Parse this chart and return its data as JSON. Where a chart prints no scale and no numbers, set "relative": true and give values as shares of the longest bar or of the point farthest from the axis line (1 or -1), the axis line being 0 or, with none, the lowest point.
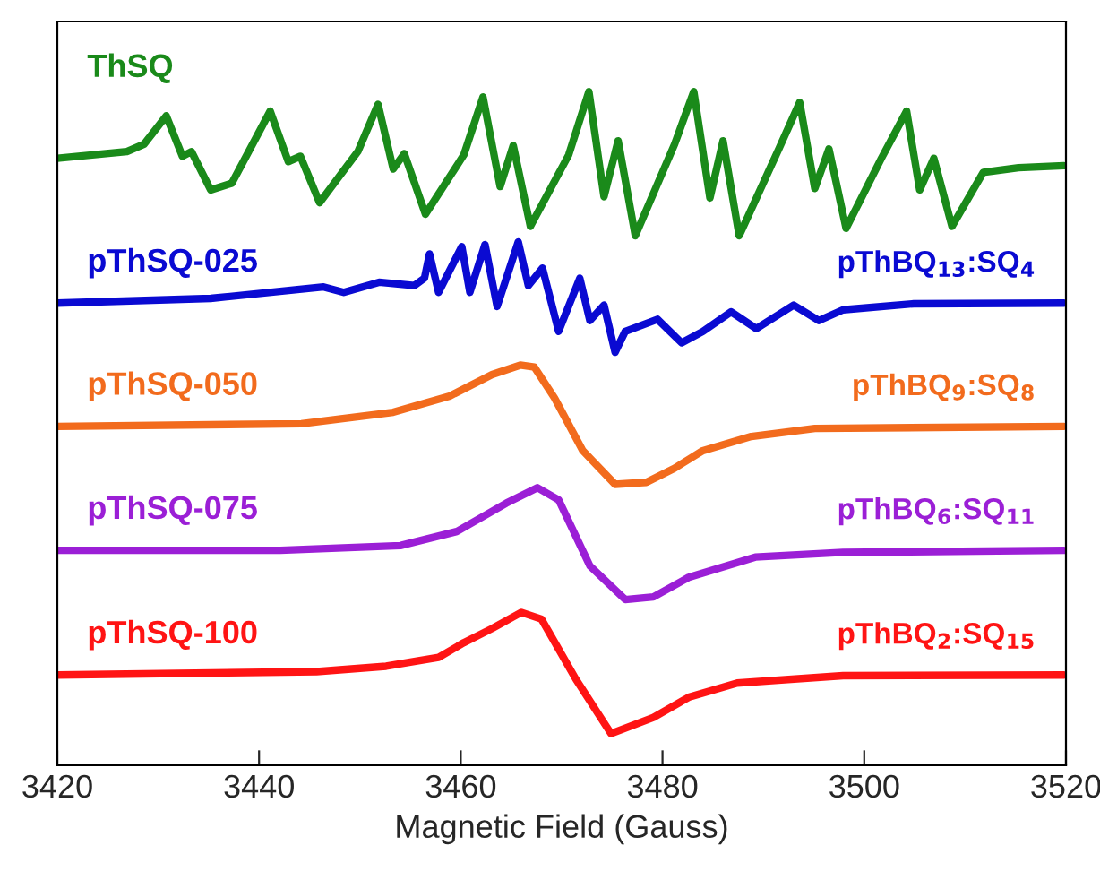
{
  "chart_data": {
    "type": "line",
    "relative": true,
    "xlabel": "Magnetic Field (Gauss)",
    "xlim": [
      3420,
      3520
    ],
    "xticks": [
      3420,
      3440,
      3460,
      3480,
      3500,
      3520
    ],
    "legend": false,
    "grid": false,
    "marker": "none",
    "line_style": "solid",
    "series": [
      {
        "name": "ThSQ",
        "color": "#1a8a1a",
        "x": [
          3420,
          3426.9,
          3428.6,
          3430.8,
          3432.4,
          3433.3,
          3435.2,
          3437.3,
          3441.1,
          3442.9,
          3444.1,
          3446.0,
          3449.8,
          3451.8,
          3453.3,
          3454.4,
          3456.5,
          3460.3,
          3462.2,
          3463.9,
          3465.2,
          3466.9,
          3470.7,
          3472.7,
          3474.2,
          3475.6,
          3477.3,
          3481.2,
          3483.1,
          3484.7,
          3486.0,
          3487.6,
          3491.6,
          3493.6,
          3495.1,
          3496.5,
          3498.2,
          3501.7,
          3504.2,
          3505.5,
          3506.9,
          3508.7,
          3511.8,
          3515.3,
          3519.8
        ],
        "values": [
          0.901,
          0.911,
          0.922,
          0.964,
          0.904,
          0.911,
          0.854,
          0.864,
          0.971,
          0.896,
          0.904,
          0.835,
          0.911,
          0.981,
          0.885,
          0.908,
          0.818,
          0.906,
          0.992,
          0.859,
          0.92,
          0.8,
          0.906,
          1.0,
          0.844,
          0.927,
          0.786,
          0.922,
          1.0,
          0.842,
          0.927,
          0.786,
          0.917,
          0.984,
          0.856,
          0.915,
          0.797,
          0.901,
          0.971,
          0.854,
          0.901,
          0.8,
          0.88,
          0.887,
          0.89
        ]
      },
      {
        "name": "pThSQ-025",
        "color": "#0a0ad2",
        "x": [
          3420,
          3435.2,
          3446.4,
          3448.4,
          3451.9,
          3455.4,
          3456.4,
          3456.9,
          3457.8,
          3460.1,
          3460.9,
          3462.4,
          3463.6,
          3465.7,
          3466.7,
          3468.1,
          3469.7,
          3471.8,
          3472.8,
          3474.2,
          3475.3,
          3476.3,
          3479.5,
          3481.9,
          3484.0,
          3486.8,
          3489.3,
          3493.0,
          3495.5,
          3497.9,
          3504.9,
          3519.8
        ],
        "values": [
          0.686,
          0.693,
          0.71,
          0.702,
          0.717,
          0.712,
          0.723,
          0.759,
          0.702,
          0.77,
          0.702,
          0.773,
          0.681,
          0.777,
          0.712,
          0.738,
          0.644,
          0.723,
          0.66,
          0.683,
          0.613,
          0.644,
          0.662,
          0.627,
          0.644,
          0.673,
          0.648,
          0.683,
          0.66,
          0.676,
          0.685,
          0.686
        ]
      },
      {
        "name": "pThSQ-050",
        "color": "#f26b1d",
        "x": [
          3420,
          3444.2,
          3453.3,
          3458.9,
          3463.1,
          3465.9,
          3467.3,
          3469.3,
          3472.1,
          3475.3,
          3478.4,
          3481.2,
          3484.0,
          3488.8,
          3495.1,
          3519.8
        ],
        "values": [
          0.503,
          0.507,
          0.524,
          0.548,
          0.58,
          0.594,
          0.591,
          0.545,
          0.467,
          0.417,
          0.42,
          0.441,
          0.467,
          0.488,
          0.5,
          0.503
        ]
      },
      {
        "name": "pThSQ-075",
        "color": "#9b1fd6",
        "x": [
          3420,
          3442.1,
          3454,
          3459.6,
          3464.5,
          3467.6,
          3469.7,
          3472.8,
          3476.3,
          3479.1,
          3482.6,
          3489.2,
          3497.9,
          3519.8
        ],
        "values": [
          0.319,
          0.319,
          0.326,
          0.347,
          0.389,
          0.412,
          0.394,
          0.296,
          0.246,
          0.25,
          0.279,
          0.309,
          0.316,
          0.319
        ]
      },
      {
        "name": "pThSQ-100",
        "color": "#ff1414",
        "x": [
          3420,
          3445.7,
          3452.6,
          3457.8,
          3460.3,
          3463.1,
          3466,
          3468,
          3471.4,
          3474.9,
          3479.1,
          3482.6,
          3487.4,
          3497.9,
          3519.8
        ],
        "values": [
          0.134,
          0.139,
          0.147,
          0.16,
          0.182,
          0.203,
          0.227,
          0.217,
          0.128,
          0.047,
          0.071,
          0.101,
          0.122,
          0.133,
          0.134
        ]
      }
    ],
    "annotations": [
      "pThBQ$_{13}$:SQ$_{4}$",
      "pThBQ$_{9}$:SQ$_{8}$",
      "pThBQ$_{6}$:SQ$_{11}$",
      "pThBQ$_{2}$:SQ$_{15}$"
    ]
  }
}
